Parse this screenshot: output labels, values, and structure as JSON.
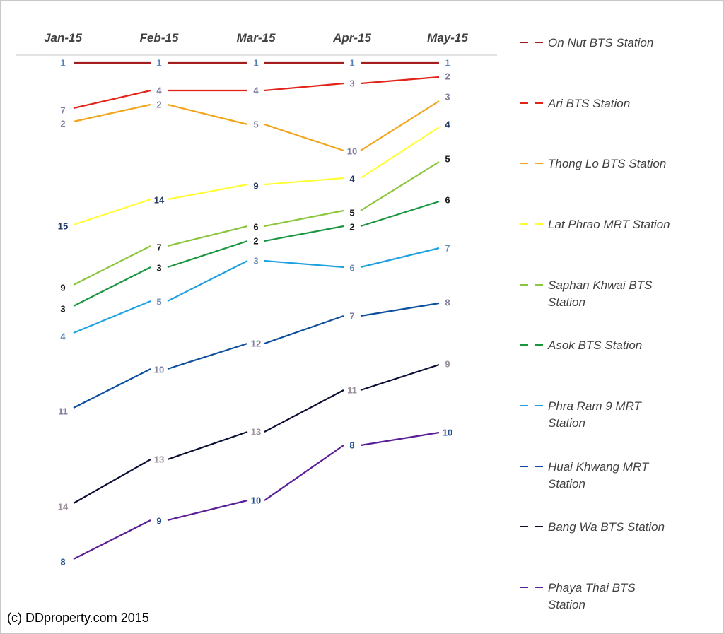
{
  "chart_data": {
    "type": "line",
    "categories": [
      "Jan-15",
      "Feb-15",
      "Mar-15",
      "Apr-15",
      "May-15"
    ],
    "series": [
      {
        "name": "On Nut BTS Station",
        "color": "#a31f1f",
        "label_color": "#4f81bd",
        "values": [
          1,
          1,
          1,
          1,
          1
        ]
      },
      {
        "name": "Ari BTS Station",
        "color": "#e2231a",
        "label_color": "#7f7f9f",
        "values": [
          7,
          4,
          4,
          3,
          2
        ]
      },
      {
        "name": "Thong Lo BTS Station",
        "color": "#f2a51a",
        "label_color": "#7f7f9f",
        "values": [
          2,
          2,
          5,
          10,
          3
        ]
      },
      {
        "name": "Lat Phrao MRT Station",
        "color": "#ffff33",
        "label_color": "#1f3864",
        "values": [
          15,
          14,
          9,
          4,
          4
        ]
      },
      {
        "name": "Saphan Khwai BTS Station",
        "color": "#8cc63f",
        "label_color": "#1a1a1a",
        "values": [
          9,
          7,
          6,
          5,
          5
        ]
      },
      {
        "name": "Asok BTS Station",
        "color": "#1a9641",
        "label_color": "#1a1a1a",
        "values": [
          3,
          3,
          2,
          2,
          6
        ]
      },
      {
        "name": "Phra Ram 9 MRT Station",
        "color": "#1ea1e0",
        "label_color": "#6f8fb8",
        "values": [
          4,
          5,
          3,
          6,
          7
        ]
      },
      {
        "name": "Huai Khwang MRT Station",
        "color": "#0d4f9e",
        "label_color": "#7f7f9f",
        "values": [
          11,
          10,
          12,
          7,
          8
        ]
      },
      {
        "name": "Bang Wa BTS Station",
        "color": "#0b0f33",
        "label_color": "#9a8f9a",
        "values": [
          14,
          13,
          13,
          11,
          9
        ]
      },
      {
        "name": "Phaya Thai BTS Station",
        "color": "#5a1e96",
        "label_color": "#1f4e8c",
        "values": [
          8,
          9,
          10,
          8,
          10
        ]
      }
    ]
  },
  "credit": "(c) DDproperty.com 2015"
}
